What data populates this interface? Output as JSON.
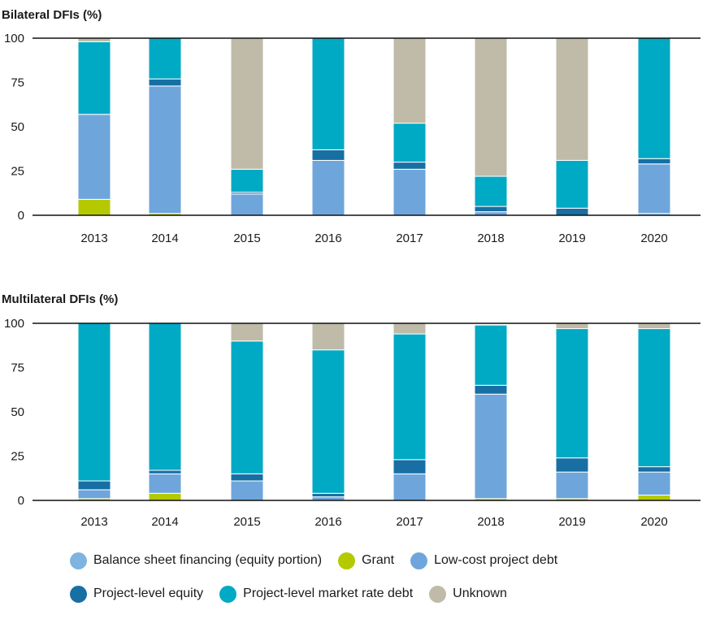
{
  "chart_data": [
    {
      "type": "bar",
      "stacked": true,
      "title": "Bilateral DFIs (%)",
      "categories": [
        "2013",
        "2014",
        "2015",
        "2016",
        "2017",
        "2018",
        "2019",
        "2020"
      ],
      "ylim": [
        0,
        100
      ],
      "yticks": [
        "0",
        "25",
        "50",
        "75",
        "100"
      ],
      "series": [
        {
          "name": "Grant",
          "color": "#b5c900",
          "values": [
            9,
            1,
            0,
            0,
            0,
            0,
            0,
            0
          ]
        },
        {
          "name": "Balance sheet financing (equity portion)",
          "color": "#7fb3e0",
          "values": [
            0,
            0,
            0,
            0,
            0,
            0,
            0,
            1
          ]
        },
        {
          "name": "Low-cost project debt",
          "color": "#6ea6dc",
          "values": [
            48,
            72,
            12,
            31,
            26,
            2,
            0,
            28
          ]
        },
        {
          "name": "Project-level equity",
          "color": "#176fa3",
          "values": [
            0,
            4,
            1,
            6,
            4,
            3,
            4,
            3
          ]
        },
        {
          "name": "Project-level market rate debt",
          "color": "#00a9c4",
          "values": [
            41,
            23,
            13,
            63,
            22,
            17,
            27,
            68
          ]
        },
        {
          "name": "Unknown",
          "color": "#bfbba8",
          "values": [
            2,
            0,
            74,
            0,
            48,
            78,
            69,
            0
          ]
        }
      ]
    },
    {
      "type": "bar",
      "stacked": true,
      "title": "Multilateral DFIs (%)",
      "categories": [
        "2013",
        "2014",
        "2015",
        "2016",
        "2017",
        "2018",
        "2019",
        "2020"
      ],
      "ylim": [
        0,
        100
      ],
      "yticks": [
        "0",
        "25",
        "50",
        "75",
        "100"
      ],
      "series": [
        {
          "name": "Grant",
          "color": "#b5c900",
          "values": [
            1,
            4,
            0,
            0,
            0,
            1,
            1,
            3
          ]
        },
        {
          "name": "Balance sheet financing (equity portion)",
          "color": "#7fb3e0",
          "values": [
            0,
            0,
            0,
            0,
            0,
            0,
            0,
            0
          ]
        },
        {
          "name": "Low-cost project debt",
          "color": "#6ea6dc",
          "values": [
            5,
            11,
            11,
            2,
            15,
            59,
            15,
            13
          ]
        },
        {
          "name": "Project-level equity",
          "color": "#176fa3",
          "values": [
            5,
            2,
            4,
            2,
            8,
            5,
            8,
            3
          ]
        },
        {
          "name": "Project-level market rate debt",
          "color": "#00a9c4",
          "values": [
            89,
            83,
            75,
            81,
            71,
            34,
            73,
            78
          ]
        },
        {
          "name": "Unknown",
          "color": "#bfbba8",
          "values": [
            0,
            0,
            10,
            15,
            6,
            0,
            3,
            3
          ]
        }
      ]
    }
  ],
  "legend": {
    "rows": [
      [
        {
          "label": "Balance sheet financing (equity portion)",
          "color": "#7fb3e0",
          "icon": "circle-icon"
        },
        {
          "label": "Grant",
          "color": "#b5c900",
          "icon": "circle-icon"
        },
        {
          "label": "Low-cost project debt",
          "color": "#6ea6dc",
          "icon": "circle-icon"
        }
      ],
      [
        {
          "label": "Project-level equity",
          "color": "#176fa3",
          "icon": "circle-icon"
        },
        {
          "label": "Project-level market rate debt",
          "color": "#00a9c4",
          "icon": "circle-icon"
        },
        {
          "label": "Unknown",
          "color": "#bfbba8",
          "icon": "circle-icon"
        }
      ]
    ]
  }
}
